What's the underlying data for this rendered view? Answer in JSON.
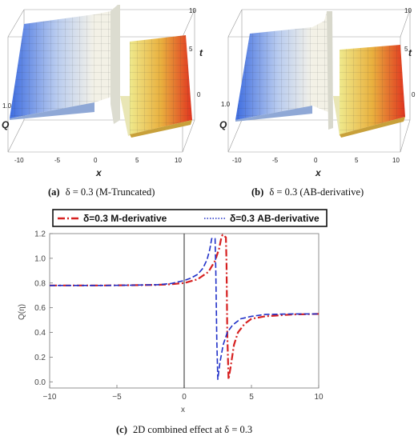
{
  "captions": {
    "a_tag": "(a)",
    "a_text": "δ = 0.3 (M-Truncated)",
    "b_tag": "(b)",
    "b_text": "δ = 0.3 (AB-derivative)",
    "c_tag": "(c)",
    "c_text": "2D combined effect at δ = 0.3"
  },
  "colors": {
    "m_series": "#d62020",
    "ab_series": "#2030c8",
    "surface_low": "#3f6fe0",
    "surface_mid": "#f4f0e2",
    "surface_high": "#e23a22"
  },
  "chart_data": [
    {
      "type": "surface3d",
      "panel": "a",
      "xlabel": "x",
      "ylabel": "t",
      "zlabel": "Q",
      "x_ticks": [
        "-10",
        "-5",
        "0",
        "5",
        "10"
      ],
      "t_ticks": [
        "0",
        "5",
        "10"
      ],
      "z_ticks": [
        "1.0"
      ],
      "xlim": [
        -10,
        10
      ],
      "tlim": [
        0,
        10
      ]
    },
    {
      "type": "surface3d",
      "panel": "b",
      "xlabel": "x",
      "ylabel": "t",
      "zlabel": "Q",
      "x_ticks": [
        "-10",
        "-5",
        "0",
        "5",
        "10"
      ],
      "t_ticks": [
        "0",
        "5",
        "10"
      ],
      "z_ticks": [
        "1.0"
      ],
      "xlim": [
        -10,
        10
      ],
      "tlim": [
        0,
        10
      ]
    },
    {
      "type": "line",
      "panel": "c",
      "xlabel": "x",
      "ylabel": "Q(η)",
      "xlim": [
        -10,
        10
      ],
      "ylim": [
        -0.05,
        1.2
      ],
      "x_ticks": [
        -10,
        -5,
        0,
        5,
        10
      ],
      "y_ticks": [
        0.0,
        0.2,
        0.4,
        0.6,
        0.8,
        1.0,
        1.2
      ],
      "legend_position": "top",
      "series": [
        {
          "name": "δ=0.3 M-derivative",
          "style": "dash-dot",
          "x": [
            -10,
            -6,
            -4,
            -2,
            -1,
            0,
            1,
            1.8,
            2.3,
            2.6,
            2.75,
            2.85,
            3.1,
            3.15,
            3.2,
            3.3,
            3.45,
            3.7,
            4.0,
            4.5,
            5,
            6,
            8,
            10
          ],
          "y": [
            0.78,
            0.78,
            0.782,
            0.785,
            0.79,
            0.8,
            0.83,
            0.89,
            0.98,
            1.08,
            1.16,
            1.19,
            1.17,
            0.95,
            0.4,
            0.02,
            0.12,
            0.3,
            0.4,
            0.47,
            0.51,
            0.53,
            0.545,
            0.55
          ]
        },
        {
          "name": "δ=0.3 AB-derivative",
          "style": "dashed",
          "x": [
            -10,
            -6,
            -4,
            -2,
            -1,
            0,
            0.5,
            1.0,
            1.4,
            1.7,
            1.9,
            2.05,
            2.3,
            2.35,
            2.42,
            2.5,
            2.65,
            2.9,
            3.2,
            3.6,
            4.2,
            5,
            6,
            8,
            10
          ],
          "y": [
            0.78,
            0.78,
            0.782,
            0.786,
            0.795,
            0.82,
            0.84,
            0.87,
            0.92,
            0.99,
            1.07,
            1.16,
            1.16,
            0.9,
            0.35,
            0.02,
            0.15,
            0.3,
            0.4,
            0.46,
            0.51,
            0.53,
            0.545,
            0.55,
            0.55
          ]
        }
      ]
    }
  ]
}
